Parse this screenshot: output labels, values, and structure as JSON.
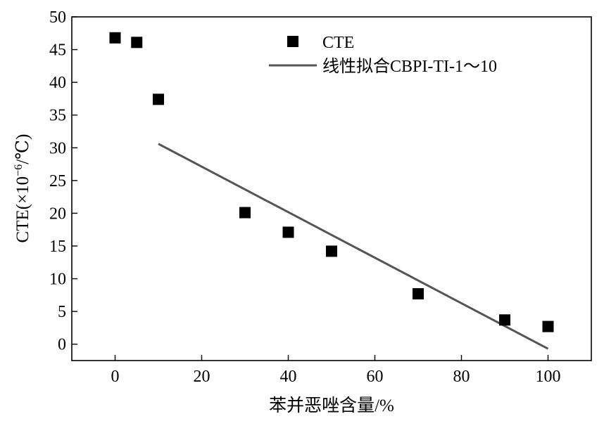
{
  "chart_data": {
    "type": "scatter",
    "title": "",
    "xlabel": "苯并恶唑含量/%",
    "ylabel_prefix": "CTE(×10",
    "ylabel_exp": "−6",
    "ylabel_suffix": "/℃)",
    "xlim": [
      -10,
      110
    ],
    "ylim": [
      -2.5,
      50
    ],
    "xticks": [
      0,
      20,
      40,
      60,
      80,
      100
    ],
    "yticks": [
      0,
      5,
      10,
      15,
      20,
      25,
      30,
      35,
      40,
      45,
      50
    ],
    "grid": false,
    "legend_position": "top-center",
    "series": [
      {
        "name": "CTE",
        "kind": "scatter",
        "marker": "square",
        "color": "#000000",
        "points": [
          {
            "x": 0,
            "y": 46.8
          },
          {
            "x": 5,
            "y": 46.1
          },
          {
            "x": 10,
            "y": 37.4
          },
          {
            "x": 30,
            "y": 20.1
          },
          {
            "x": 40,
            "y": 17.1
          },
          {
            "x": 50,
            "y": 14.2
          },
          {
            "x": 70,
            "y": 7.7
          },
          {
            "x": 90,
            "y": 3.7
          },
          {
            "x": 100,
            "y": 2.7
          }
        ]
      },
      {
        "name": "线性拟合CBPI-TI-1～10",
        "kind": "line",
        "color": "#555555",
        "points": [
          {
            "x": 10,
            "y": 30.6
          },
          {
            "x": 100,
            "y": -0.7
          }
        ]
      }
    ]
  }
}
